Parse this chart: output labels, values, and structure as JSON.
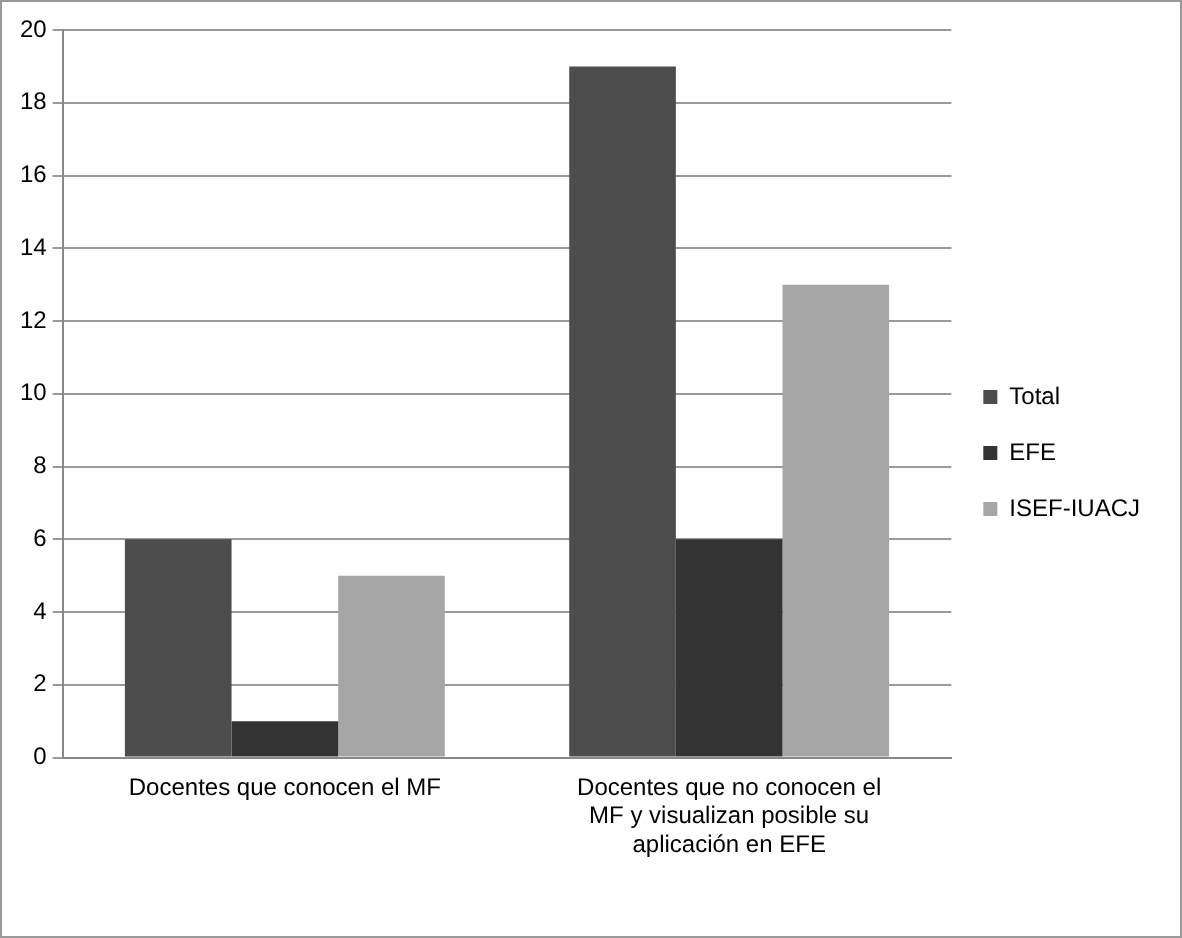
{
  "chart_data": {
    "type": "bar",
    "categories": [
      "Docentes que conocen el MF",
      "Docentes que no conocen el MF y visualizan posible su aplicación en EFE"
    ],
    "series": [
      {
        "name": "Total",
        "color": "#4d4d4d",
        "values": [
          6,
          19
        ]
      },
      {
        "name": "EFE",
        "color": "#333333",
        "values": [
          1,
          6
        ]
      },
      {
        "name": "ISEF-IUACJ",
        "color": "#a6a6a6",
        "values": [
          5,
          13
        ]
      }
    ],
    "ylim": [
      0,
      20
    ],
    "yticks": [
      0,
      2,
      4,
      6,
      8,
      10,
      12,
      14,
      16,
      18,
      20
    ],
    "grid": "y",
    "legend": "right"
  }
}
